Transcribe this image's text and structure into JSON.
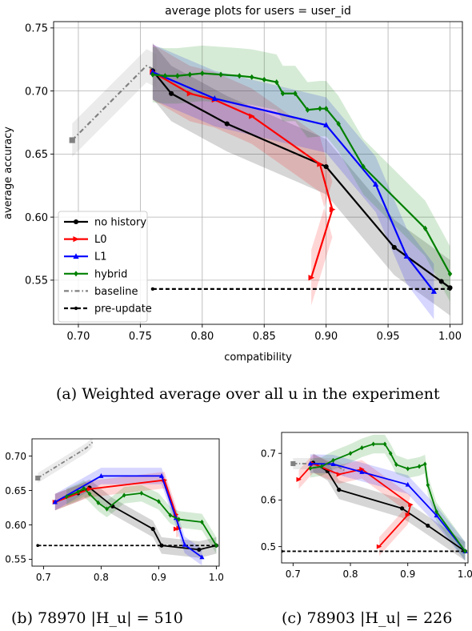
{
  "captions": {
    "a": "(a) Weighted average over all u in the experiment",
    "b": "(b) 78970 |H_u| = 510",
    "c": "(c) 78903 |H_u| = 226"
  },
  "colors": {
    "no history": "#000000",
    "L0": "#ff0000",
    "L1": "#0000ff",
    "hybrid": "#008000",
    "baseline": "#808080",
    "pre-update": "#000000"
  },
  "chart_data": [
    {
      "id": "a",
      "type": "line",
      "title": "average plots for users = user_id",
      "xlabel": "compatibility",
      "ylabel": "average accuracy",
      "xlim": [
        0.68,
        1.01
      ],
      "ylim": [
        0.515,
        0.755
      ],
      "xticks": [
        "0.70",
        "0.75",
        "0.80",
        "0.85",
        "0.90",
        "0.95",
        "1.00"
      ],
      "yticks": [
        "0.55",
        "0.60",
        "0.65",
        "0.70",
        "0.75"
      ],
      "grid": true,
      "legend": {
        "position": "lower-left",
        "entries": [
          "no history",
          "L0",
          "L1",
          "hybrid",
          "baseline",
          "pre-update"
        ]
      },
      "series": [
        {
          "name": "no history",
          "marker": "circle",
          "points": [
            [
              0.76,
              0.716
            ],
            [
              0.775,
              0.698
            ],
            [
              0.82,
              0.674
            ],
            [
              0.9,
              0.64
            ],
            [
              0.955,
              0.576
            ],
            [
              0.993,
              0.549
            ],
            [
              1.0,
              0.544
            ]
          ]
        },
        {
          "name": "L0",
          "marker": "triangle-right",
          "points": [
            [
              0.76,
              0.715
            ],
            [
              0.79,
              0.698
            ],
            [
              0.81,
              0.693
            ],
            [
              0.84,
              0.68
            ],
            [
              0.895,
              0.642
            ],
            [
              0.905,
              0.606
            ],
            [
              0.888,
              0.552
            ]
          ]
        },
        {
          "name": "L1",
          "marker": "triangle-up",
          "points": [
            [
              0.76,
              0.715
            ],
            [
              0.81,
              0.694
            ],
            [
              0.9,
              0.673
            ],
            [
              0.94,
              0.626
            ],
            [
              0.965,
              0.569
            ],
            [
              0.987,
              0.541
            ]
          ]
        },
        {
          "name": "hybrid",
          "marker": "diamond",
          "points": [
            [
              0.76,
              0.713
            ],
            [
              0.77,
              0.712
            ],
            [
              0.78,
              0.712
            ],
            [
              0.79,
              0.713
            ],
            [
              0.8,
              0.714
            ],
            [
              0.815,
              0.713
            ],
            [
              0.83,
              0.712
            ],
            [
              0.84,
              0.711
            ],
            [
              0.85,
              0.709
            ],
            [
              0.86,
              0.707
            ],
            [
              0.865,
              0.698
            ],
            [
              0.875,
              0.698
            ],
            [
              0.885,
              0.685
            ],
            [
              0.895,
              0.686
            ],
            [
              0.9,
              0.686
            ],
            [
              0.91,
              0.674
            ],
            [
              0.93,
              0.64
            ],
            [
              0.98,
              0.591
            ],
            [
              1.0,
              0.555
            ]
          ]
        },
        {
          "name": "baseline",
          "marker": "square",
          "points": [
            [
              0.695,
              0.661
            ],
            [
              0.755,
              0.72
            ],
            [
              0.763,
              0.716
            ]
          ]
        },
        {
          "name": "pre-update",
          "marker": "circle-small",
          "points": [
            [
              0.76,
              0.543
            ],
            [
              1.0,
              0.543
            ]
          ]
        }
      ]
    },
    {
      "id": "b",
      "type": "line",
      "xlim": [
        0.68,
        1.005
      ],
      "ylim": [
        0.54,
        0.725
      ],
      "xticks": [
        "0.7",
        "0.8",
        "0.9",
        "1.0"
      ],
      "yticks": [
        "0.55",
        "0.60",
        "0.65",
        "0.70"
      ],
      "grid": false,
      "series": [
        {
          "name": "no history",
          "marker": "circle",
          "points": [
            [
              0.72,
              0.633
            ],
            [
              0.76,
              0.646
            ],
            [
              0.78,
              0.654
            ],
            [
              0.82,
              0.627
            ],
            [
              0.89,
              0.594
            ],
            [
              0.905,
              0.57
            ],
            [
              0.97,
              0.564
            ],
            [
              1.0,
              0.57
            ]
          ]
        },
        {
          "name": "L0",
          "marker": "triangle-right",
          "points": [
            [
              0.72,
              0.633
            ],
            [
              0.78,
              0.652
            ],
            [
              0.91,
              0.665
            ],
            [
              0.93,
              0.615
            ],
            [
              0.935,
              0.595
            ],
            [
              0.93,
              0.594
            ]
          ]
        },
        {
          "name": "L1",
          "marker": "triangle-up",
          "points": [
            [
              0.72,
              0.633
            ],
            [
              0.8,
              0.671
            ],
            [
              0.905,
              0.671
            ],
            [
              0.93,
              0.61
            ],
            [
              0.945,
              0.571
            ],
            [
              0.975,
              0.553
            ]
          ]
        },
        {
          "name": "hybrid",
          "marker": "diamond",
          "points": [
            [
              0.74,
              0.641
            ],
            [
              0.76,
              0.648
            ],
            [
              0.77,
              0.653
            ],
            [
              0.78,
              0.645
            ],
            [
              0.795,
              0.632
            ],
            [
              0.81,
              0.623
            ],
            [
              0.84,
              0.643
            ],
            [
              0.87,
              0.646
            ],
            [
              0.9,
              0.634
            ],
            [
              0.92,
              0.614
            ],
            [
              0.935,
              0.608
            ],
            [
              0.975,
              0.604
            ],
            [
              1.0,
              0.57
            ]
          ]
        },
        {
          "name": "baseline",
          "marker": "square",
          "points": [
            [
              0.69,
              0.668
            ],
            [
              0.775,
              0.712
            ],
            [
              0.785,
              0.72
            ]
          ]
        },
        {
          "name": "pre-update",
          "marker": "circle-small",
          "points": [
            [
              0.69,
              0.57
            ],
            [
              1.0,
              0.57
            ]
          ]
        }
      ]
    },
    {
      "id": "c",
      "type": "line",
      "xlim": [
        0.68,
        1.005
      ],
      "ylim": [
        0.465,
        0.745
      ],
      "xticks": [
        "0.7",
        "0.8",
        "0.9",
        "1.0"
      ],
      "yticks": [
        "0.5",
        "0.6",
        "0.7"
      ],
      "grid": false,
      "series": [
        {
          "name": "no history",
          "marker": "circle",
          "points": [
            [
              0.735,
              0.68
            ],
            [
              0.76,
              0.662
            ],
            [
              0.78,
              0.622
            ],
            [
              0.89,
              0.582
            ],
            [
              0.935,
              0.545
            ],
            [
              1.0,
              0.49
            ]
          ]
        },
        {
          "name": "L0",
          "marker": "triangle-right",
          "points": [
            [
              0.71,
              0.644
            ],
            [
              0.735,
              0.678
            ],
            [
              0.78,
              0.655
            ],
            [
              0.82,
              0.666
            ],
            [
              0.905,
              0.59
            ],
            [
              0.9,
              0.568
            ],
            [
              0.85,
              0.5
            ]
          ]
        },
        {
          "name": "L1",
          "marker": "triangle-up",
          "points": [
            [
              0.73,
              0.678
            ],
            [
              0.77,
              0.677
            ],
            [
              0.82,
              0.66
            ],
            [
              0.9,
              0.633
            ],
            [
              0.95,
              0.567
            ],
            [
              1.0,
              0.49
            ]
          ]
        },
        {
          "name": "hybrid",
          "marker": "diamond",
          "points": [
            [
              0.73,
              0.668
            ],
            [
              0.75,
              0.672
            ],
            [
              0.77,
              0.685
            ],
            [
              0.8,
              0.7
            ],
            [
              0.82,
              0.712
            ],
            [
              0.84,
              0.72
            ],
            [
              0.86,
              0.72
            ],
            [
              0.87,
              0.7
            ],
            [
              0.88,
              0.676
            ],
            [
              0.9,
              0.667
            ],
            [
              0.92,
              0.672
            ],
            [
              0.93,
              0.677
            ],
            [
              0.935,
              0.632
            ],
            [
              0.95,
              0.575
            ],
            [
              1.0,
              0.49
            ]
          ]
        },
        {
          "name": "baseline",
          "marker": "square",
          "points": [
            [
              0.7,
              0.678
            ],
            [
              0.77,
              0.678
            ],
            [
              0.79,
              0.663
            ]
          ]
        },
        {
          "name": "pre-update",
          "marker": "circle-small",
          "points": [
            [
              0.68,
              0.49
            ],
            [
              1.0,
              0.49
            ]
          ]
        }
      ]
    }
  ]
}
